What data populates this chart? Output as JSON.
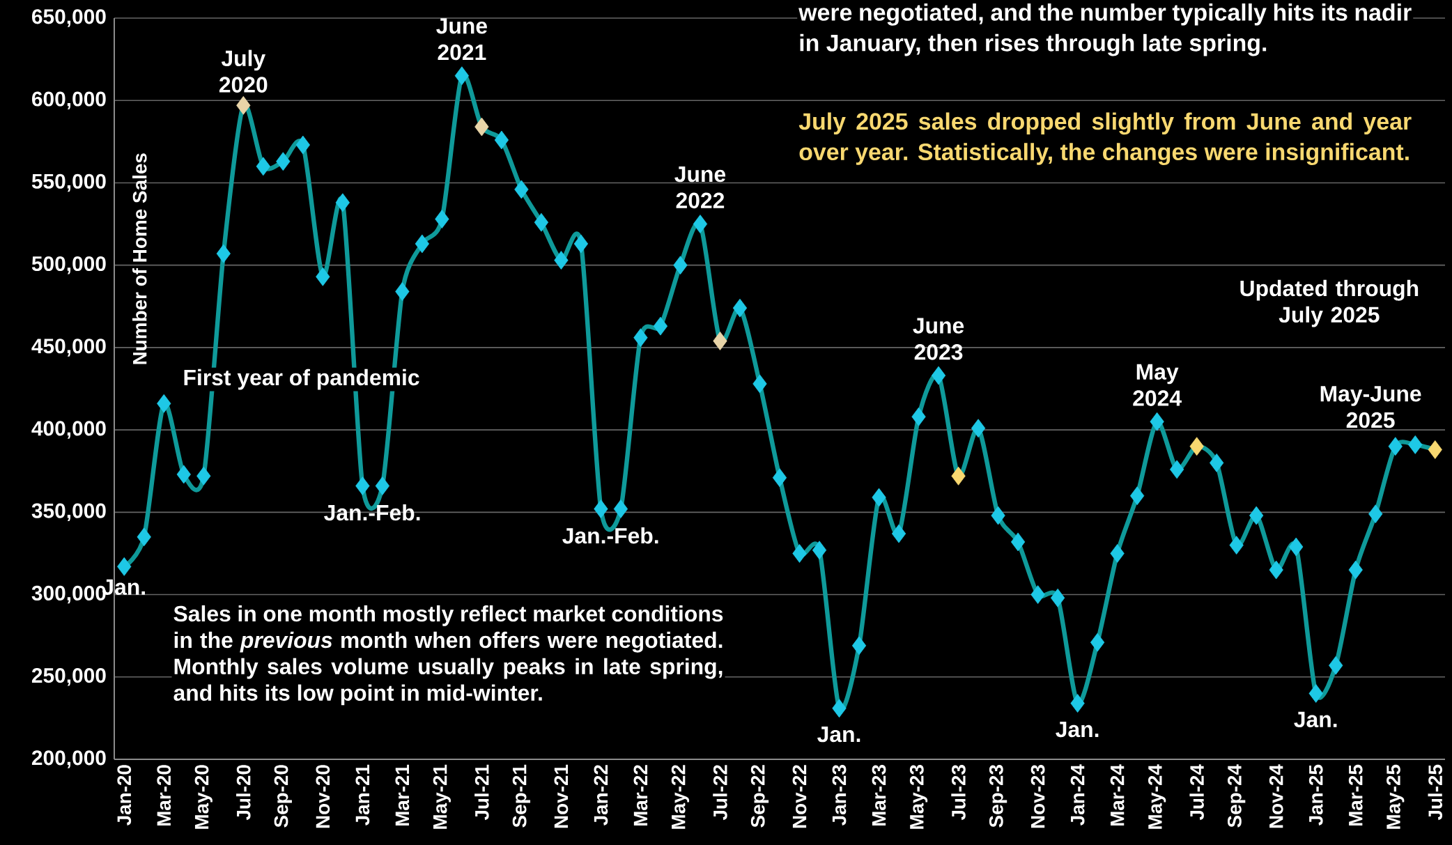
{
  "chart_data": {
    "type": "line",
    "ylabel": "Number of Home Sales",
    "categories": [
      "Jan-20",
      null,
      "Mar-20",
      null,
      "May-20",
      null,
      "Jul-20",
      null,
      "Sep-20",
      null,
      "Nov-20",
      null,
      "Jan-21",
      null,
      "Mar-21",
      null,
      "May-21",
      null,
      "Jul-21",
      null,
      "Sep-21",
      null,
      "Nov-21",
      null,
      "Jan-22",
      null,
      "Mar-22",
      null,
      "May-22",
      null,
      "Jul-22",
      null,
      "Sep-22",
      null,
      "Nov-22",
      null,
      "Jan-23",
      null,
      "Mar-23",
      null,
      "May-23",
      null,
      "Jul-23",
      null,
      "Sep-23",
      null,
      "Nov-23",
      null,
      "Jan-24",
      null,
      "Mar-24",
      null,
      "May-24",
      null,
      "Jul-24",
      null,
      "Sep-24",
      null,
      "Nov-24",
      null,
      "Jan-25",
      null,
      "Mar-25",
      null,
      "May-25",
      null,
      "Jul-25"
    ],
    "series": [
      {
        "color": "#0f9a9a",
        "colors": [
          "#1ec8e6",
          "#1ec8e6",
          "#1ec8e6",
          "#1ec8e6",
          "#1ec8e6",
          "#1ec8e6",
          "#e8d4a8",
          "#1ec8e6",
          "#1ec8e6",
          "#1ec8e6",
          "#1ec8e6",
          "#1ec8e6",
          "#1ec8e6",
          "#1ec8e6",
          "#1ec8e6",
          "#1ec8e6",
          "#1ec8e6",
          "#1ec8e6",
          "#e8d4a8",
          "#1ec8e6",
          "#1ec8e6",
          "#1ec8e6",
          "#1ec8e6",
          "#1ec8e6",
          "#1ec8e6",
          "#1ec8e6",
          "#1ec8e6",
          "#1ec8e6",
          "#1ec8e6",
          "#1ec8e6",
          "#e8d4a8",
          "#1ec8e6",
          "#1ec8e6",
          "#1ec8e6",
          "#1ec8e6",
          "#1ec8e6",
          "#1ec8e6",
          "#1ec8e6",
          "#1ec8e6",
          "#1ec8e6",
          "#1ec8e6",
          "#1ec8e6",
          "#f8d870",
          "#1ec8e6",
          "#1ec8e6",
          "#1ec8e6",
          "#1ec8e6",
          "#1ec8e6",
          "#1ec8e6",
          "#1ec8e6",
          "#1ec8e6",
          "#1ec8e6",
          "#1ec8e6",
          "#1ec8e6",
          "#f8d870",
          "#1ec8e6",
          "#1ec8e6",
          "#1ec8e6",
          "#1ec8e6",
          "#1ec8e6",
          "#1ec8e6",
          "#1ec8e6",
          "#1ec8e6",
          "#1ec8e6",
          "#1ec8e6",
          "#1ec8e6",
          "#f8d870"
        ],
        "values": [
          317000,
          335000,
          416000,
          373000,
          372000,
          507000,
          597000,
          560000,
          563000,
          573000,
          493000,
          538000,
          366000,
          366000,
          484000,
          513000,
          528000,
          615000,
          584000,
          576000,
          546000,
          526000,
          503000,
          513000,
          352000,
          352000,
          456000,
          463000,
          500000,
          525000,
          454000,
          474000,
          428000,
          371000,
          325000,
          327000,
          231000,
          269000,
          359000,
          337000,
          408000,
          433000,
          372000,
          401000,
          348000,
          332000,
          300000,
          298000,
          234000,
          271000,
          325000,
          360000,
          405000,
          376000,
          390000,
          380000,
          330000,
          348000,
          315000,
          329000,
          240000,
          257000,
          315000,
          349000,
          390000,
          391000,
          388000
        ]
      }
    ],
    "ylim": [
      200000,
      650000
    ],
    "yticks": [
      {
        "value": 200000,
        "label": "200,000"
      },
      {
        "value": 250000,
        "label": "250,000"
      },
      {
        "value": 300000,
        "label": "300,000"
      },
      {
        "value": 350000,
        "label": "350,000"
      },
      {
        "value": 400000,
        "label": "400,000"
      },
      {
        "value": 450000,
        "label": "450,000"
      },
      {
        "value": 500000,
        "label": "500,000"
      },
      {
        "value": 550000,
        "label": "550,000"
      },
      {
        "value": 600000,
        "label": "600,000"
      },
      {
        "value": 650000,
        "label": "650,000"
      }
    ],
    "grid": "y",
    "marker": "diamond",
    "line_style": "solid",
    "annotations": [
      {
        "text": "Jan.",
        "x": "Jan-20",
        "y": 317000
      },
      {
        "text": "July 2020",
        "x": "Jul-20",
        "y": 597000
      },
      "First year of pandemic",
      {
        "text": "Jan.-Feb.",
        "x": "Jan-21",
        "y": 366000
      },
      {
        "text": "June 2021",
        "y": 615000
      },
      {
        "text": "Jan.-Feb.",
        "x": "Jan-22",
        "y": 352000
      },
      {
        "text": "June 2022",
        "y": 525000
      },
      {
        "text": "Jan.",
        "x": "Jan-23",
        "y": 231000
      },
      {
        "text": "June 2023",
        "y": 433000
      },
      {
        "text": "Jan.",
        "x": "Jan-24",
        "y": 234000
      },
      {
        "text": "May 2024",
        "x": "May-24",
        "y": 405000
      },
      "Updated through July 2025",
      {
        "text": "Jan.",
        "x": "Jan-25",
        "y": 240000
      },
      {
        "text": "May-June 2025",
        "x": "May-25",
        "y": 390000
      },
      "Sales in one month mostly reflect market conditions in the *previous* month when offers were negotiated. Monthly sales volume usually peaks in late spring, and hits its low point in mid-winter.",
      "were negotiated, and the number typically hits its nadir in January, then rises through late spring.",
      "July 2025 sales dropped slightly from June and year over year. Statistically, the changes were insignificant."
    ]
  }
}
